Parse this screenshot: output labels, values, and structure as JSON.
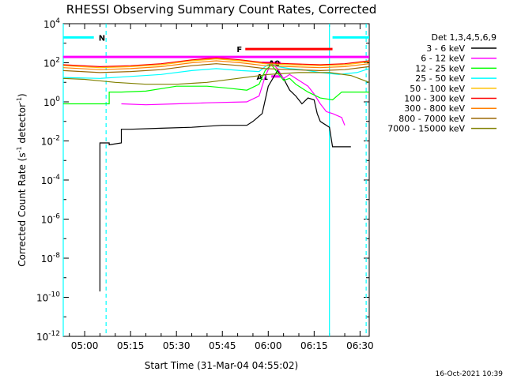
{
  "chart_data": {
    "type": "line",
    "title": "RHESSI Observing Summary Count Rates, Corrected",
    "xlabel": "Start Time (31-Mar-04 04:55:02)",
    "ylabel": "Corrected Count Rate (s",
    "ylabel_sup1": "-1",
    "ylabel_mid": " detector",
    "ylabel_sup2": "-1",
    "ylabel_end": ")",
    "footer": "16-Oct-2021 10:39",
    "legend_title": "Det 1,3,4,5,6,9",
    "x_ticks": [
      "05:00",
      "05:15",
      "05:30",
      "05:45",
      "06:00",
      "06:15",
      "06:30"
    ],
    "y_ticks": [
      {
        "base": "10",
        "exp": "4"
      },
      {
        "base": "10",
        "exp": "2"
      },
      {
        "base": "10",
        "exp": "0"
      },
      {
        "base": "10",
        "exp": "-2"
      },
      {
        "base": "10",
        "exp": "-4"
      },
      {
        "base": "10",
        "exp": "-6"
      },
      {
        "base": "10",
        "exp": "-8"
      },
      {
        "base": "10",
        "exp": "-10"
      },
      {
        "base": "10",
        "exp": "-12"
      }
    ],
    "xlim_minutes_after_0455": [
      -2,
      98
    ],
    "ylim_log10": [
      -12,
      4
    ],
    "y_scale": "log",
    "legend_position": "outside-right",
    "grid": false,
    "series": [
      {
        "name": "3 - 6 keV",
        "color": "#000000",
        "points": [
          [
            10,
            -9.7
          ],
          [
            10,
            -2.1
          ],
          [
            13,
            -2.1
          ],
          [
            13,
            -2.2
          ],
          [
            17,
            -2.1
          ],
          [
            17,
            -1.4
          ],
          [
            20,
            -1.4
          ],
          [
            30,
            -1.35
          ],
          [
            40,
            -1.3
          ],
          [
            50,
            -1.2
          ],
          [
            58,
            -1.2
          ],
          [
            60,
            -1.0
          ],
          [
            63,
            -0.6
          ],
          [
            65,
            0.8
          ],
          [
            68,
            1.6
          ],
          [
            70,
            1.2
          ],
          [
            72,
            0.6
          ],
          [
            74,
            0.3
          ],
          [
            76,
            -0.1
          ],
          [
            78,
            0.2
          ],
          [
            80,
            0.1
          ],
          [
            81,
            -0.6
          ],
          [
            82,
            -1.0
          ],
          [
            85,
            -1.3
          ],
          [
            86,
            -2.3
          ],
          [
            89,
            -2.3
          ],
          [
            92,
            -2.3
          ]
        ]
      },
      {
        "name": "6 - 12 keV",
        "color": "#ff00ff",
        "points": [
          [
            17,
            -0.1
          ],
          [
            25,
            -0.15
          ],
          [
            35,
            -0.1
          ],
          [
            45,
            -0.05
          ],
          [
            58,
            0.0
          ],
          [
            62,
            0.3
          ],
          [
            64,
            1.3
          ],
          [
            66,
            2.0
          ],
          [
            68,
            1.7
          ],
          [
            70,
            1.2
          ],
          [
            72,
            1.4
          ],
          [
            74,
            1.2
          ],
          [
            76,
            1.0
          ],
          [
            78,
            0.8
          ],
          [
            80,
            0.4
          ],
          [
            82,
            -0.1
          ],
          [
            84,
            -0.5
          ],
          [
            86,
            -0.6
          ],
          [
            89,
            -0.8
          ],
          [
            90,
            -1.2
          ]
        ]
      },
      {
        "name": "12 - 25 keV",
        "color": "#00ff00",
        "points": [
          [
            -2,
            -0.1
          ],
          [
            13,
            -0.1
          ],
          [
            13,
            0.5
          ],
          [
            17,
            0.5
          ],
          [
            25,
            0.55
          ],
          [
            35,
            0.8
          ],
          [
            45,
            0.8
          ],
          [
            52,
            0.7
          ],
          [
            58,
            0.6
          ],
          [
            62,
            0.9
          ],
          [
            64,
            1.6
          ],
          [
            66,
            1.9
          ],
          [
            68,
            1.5
          ],
          [
            70,
            1.1
          ],
          [
            72,
            1.2
          ],
          [
            74,
            0.9
          ],
          [
            76,
            0.7
          ],
          [
            78,
            0.5
          ],
          [
            82,
            0.2
          ],
          [
            86,
            0.1
          ],
          [
            89,
            0.5
          ],
          [
            92,
            0.5
          ],
          [
            98,
            0.5
          ]
        ]
      },
      {
        "name": "25 - 50 keV",
        "color": "#00ffff",
        "points": [
          [
            -2,
            1.25
          ],
          [
            10,
            1.2
          ],
          [
            20,
            1.3
          ],
          [
            30,
            1.4
          ],
          [
            40,
            1.6
          ],
          [
            48,
            1.7
          ],
          [
            56,
            1.6
          ],
          [
            62,
            1.55
          ],
          [
            64,
            1.8
          ],
          [
            66,
            2.0
          ],
          [
            68,
            1.8
          ],
          [
            72,
            1.7
          ],
          [
            76,
            1.65
          ],
          [
            82,
            1.5
          ],
          [
            88,
            1.4
          ],
          [
            94,
            1.5
          ],
          [
            98,
            1.7
          ]
        ]
      },
      {
        "name": "50 - 100 keV",
        "color": "#ffc000",
        "points": [
          [
            -2,
            1.85
          ],
          [
            10,
            1.75
          ],
          [
            20,
            1.8
          ],
          [
            30,
            1.9
          ],
          [
            40,
            2.1
          ],
          [
            48,
            2.2
          ],
          [
            56,
            2.1
          ],
          [
            64,
            1.95
          ],
          [
            72,
            1.9
          ],
          [
            82,
            1.85
          ],
          [
            90,
            1.9
          ],
          [
            98,
            2.05
          ]
        ]
      },
      {
        "name": "100 - 300 keV",
        "color": "#ff0000",
        "points": [
          [
            -2,
            1.9
          ],
          [
            10,
            1.8
          ],
          [
            20,
            1.85
          ],
          [
            30,
            1.95
          ],
          [
            40,
            2.15
          ],
          [
            48,
            2.25
          ],
          [
            56,
            2.15
          ],
          [
            64,
            2.0
          ],
          [
            72,
            1.95
          ],
          [
            82,
            1.9
          ],
          [
            90,
            1.95
          ],
          [
            98,
            2.1
          ]
        ]
      },
      {
        "name": "300 - 800 keV",
        "color": "#ff8000",
        "points": [
          [
            -2,
            1.75
          ],
          [
            10,
            1.65
          ],
          [
            20,
            1.7
          ],
          [
            30,
            1.8
          ],
          [
            40,
            2.0
          ],
          [
            48,
            2.1
          ],
          [
            56,
            2.0
          ],
          [
            64,
            1.85
          ],
          [
            72,
            1.8
          ],
          [
            82,
            1.75
          ],
          [
            90,
            1.8
          ],
          [
            98,
            1.95
          ]
        ]
      },
      {
        "name": "800 - 7000 keV",
        "color": "#996600",
        "points": [
          [
            -2,
            1.6
          ],
          [
            10,
            1.5
          ],
          [
            20,
            1.55
          ],
          [
            30,
            1.65
          ],
          [
            40,
            1.85
          ],
          [
            48,
            1.95
          ],
          [
            56,
            1.85
          ],
          [
            64,
            1.7
          ],
          [
            72,
            1.65
          ],
          [
            82,
            1.6
          ],
          [
            90,
            1.65
          ],
          [
            98,
            1.8
          ]
        ]
      },
      {
        "name": "7000 - 15000 keV",
        "color": "#808000",
        "points": [
          [
            -2,
            1.2
          ],
          [
            5,
            1.15
          ],
          [
            15,
            1.0
          ],
          [
            25,
            0.9
          ],
          [
            35,
            0.9
          ],
          [
            45,
            1.0
          ],
          [
            55,
            1.2
          ],
          [
            65,
            1.4
          ],
          [
            75,
            1.5
          ],
          [
            85,
            1.5
          ],
          [
            92,
            1.35
          ],
          [
            98,
            1.0
          ]
        ]
      }
    ],
    "attenuator_labels": [
      {
        "text": "N",
        "color": "#00ffff",
        "x_start": -2,
        "x_end": 8,
        "x_start2": 86,
        "x_end2": 98,
        "y_log": 3.3
      },
      {
        "text": "F",
        "color": "#ff0000",
        "x_start": 57.5,
        "x_end": 86,
        "y_log": 2.7
      },
      {
        "text": "A0",
        "color": "#ff00ff",
        "x_start": 63,
        "x_end": 69,
        "y_log": 2.0
      },
      {
        "text": "A1",
        "color": "#ff00ff",
        "x_start": 66,
        "x_end": 69,
        "y_log": 1.3
      }
    ],
    "magenta_band_y_log": 2.3,
    "vertical_lines": [
      {
        "x": -2,
        "color": "#00ffff",
        "style": "solid"
      },
      {
        "x": 12,
        "color": "#00ffff",
        "style": "dashed"
      },
      {
        "x": 85,
        "color": "#00ffff",
        "style": "solid"
      },
      {
        "x": 97,
        "color": "#00ffff",
        "style": "dashed"
      }
    ]
  }
}
